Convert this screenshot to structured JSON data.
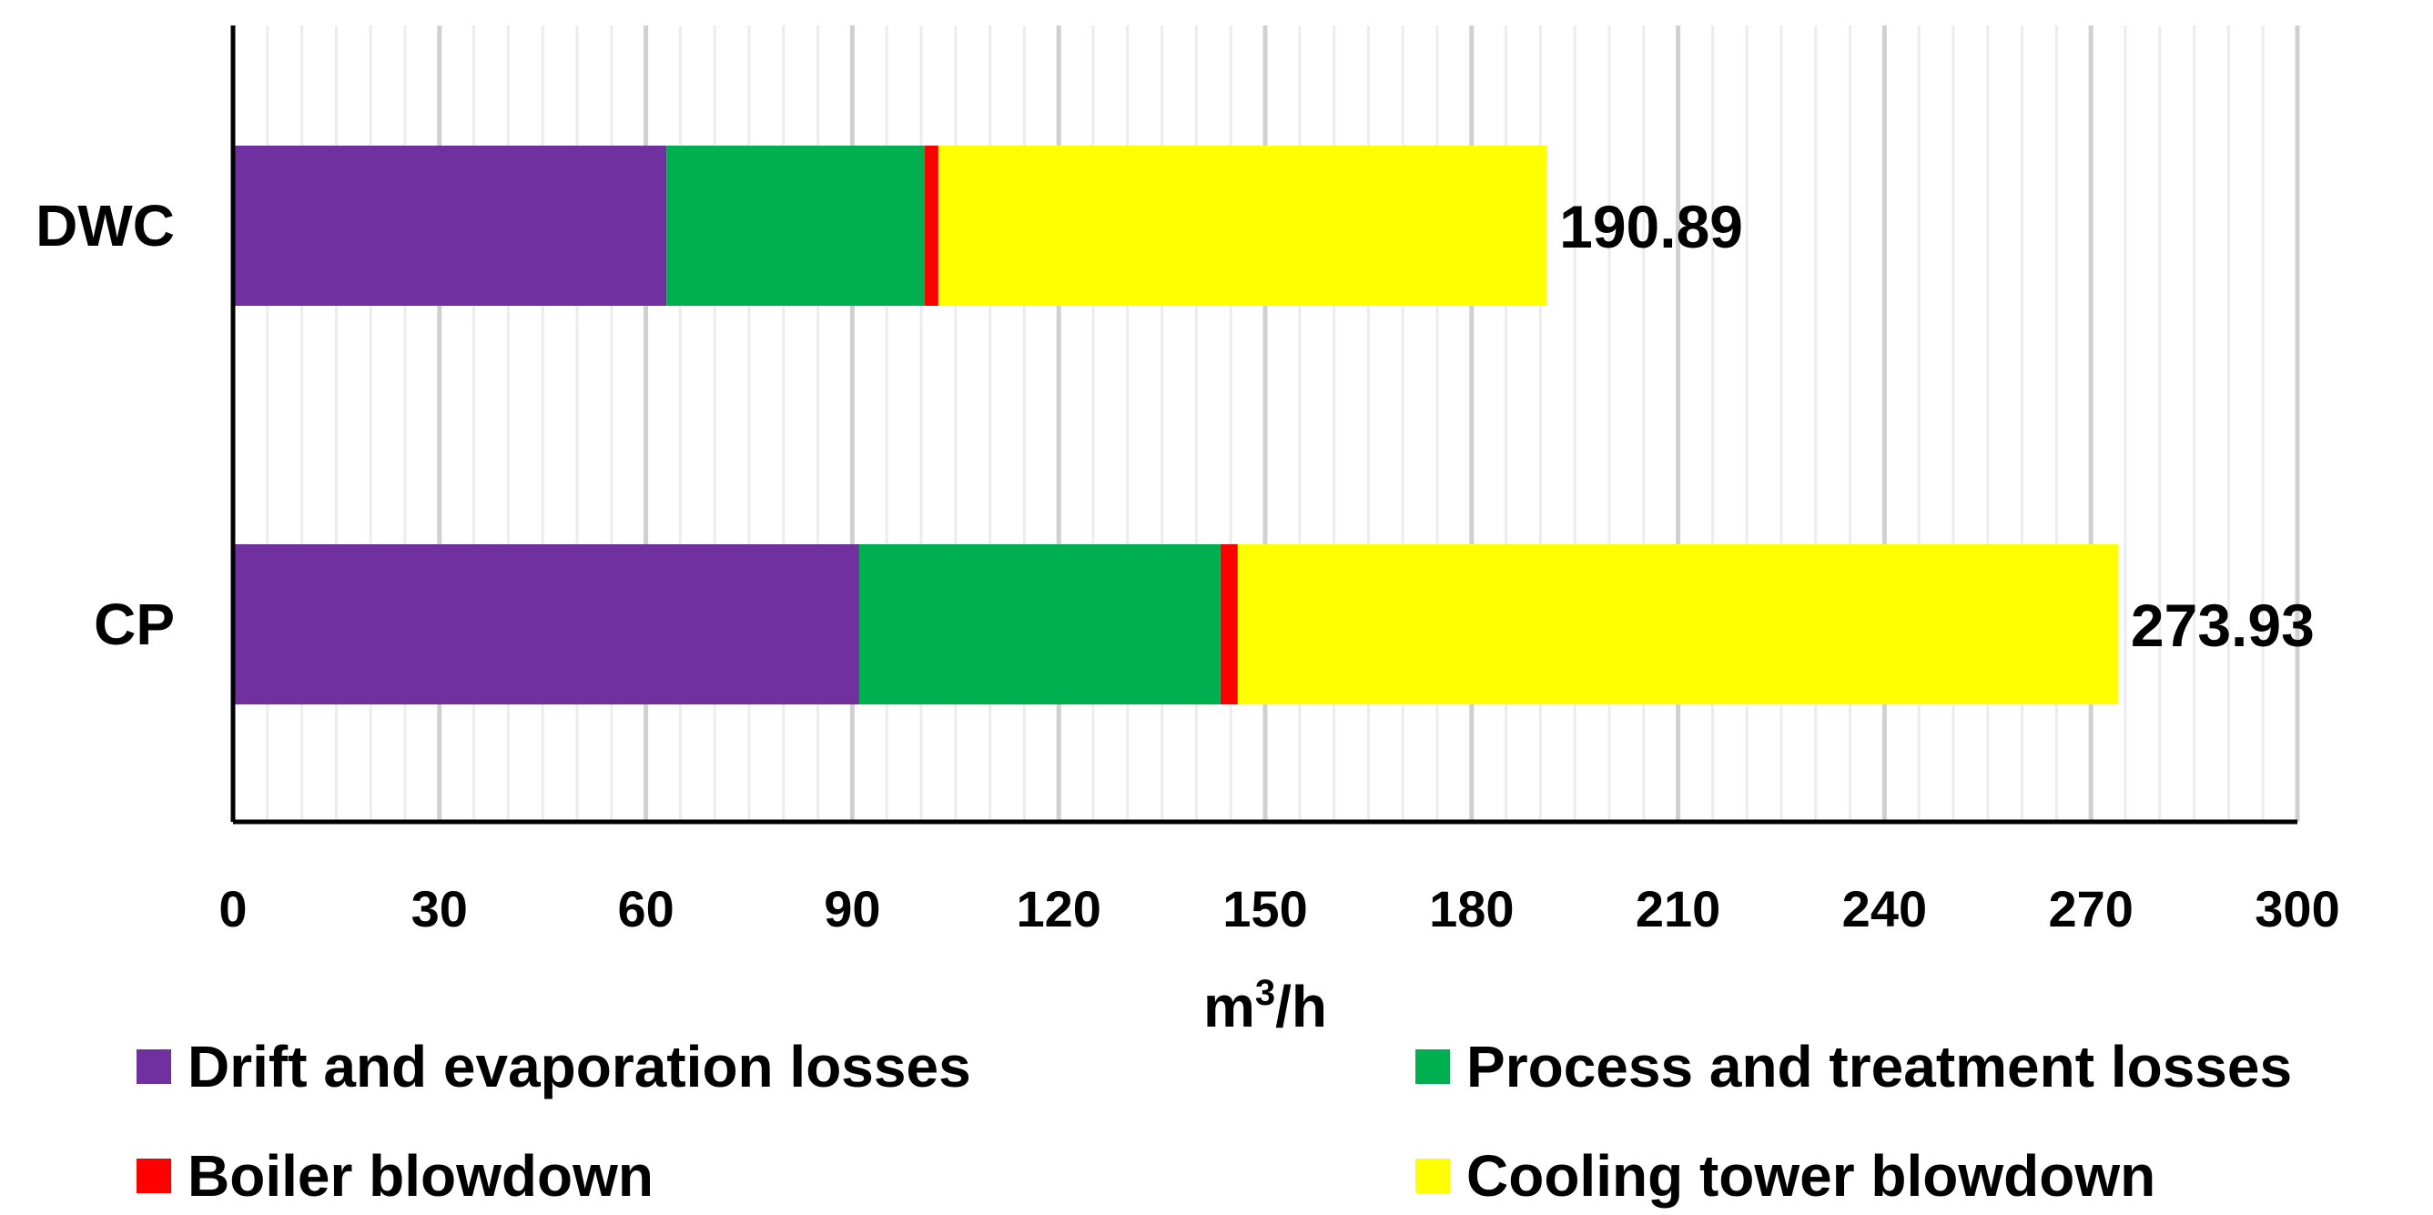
{
  "chart_data": {
    "type": "bar",
    "orientation": "horizontal",
    "stacked": true,
    "categories": [
      "DWC",
      "CP"
    ],
    "series": [
      {
        "name": "Drift and evaporation losses",
        "color": "#7030a0",
        "values": [
          63.0,
          91.0
        ]
      },
      {
        "name": "Process and treatment losses",
        "color": "#00b050",
        "values": [
          37.5,
          52.5
        ]
      },
      {
        "name": "Boiler blowdown",
        "color": "#ff0000",
        "values": [
          2.0,
          2.5
        ]
      },
      {
        "name": "Cooling tower blowdown",
        "color": "#ffff00",
        "values": [
          88.39,
          127.93
        ]
      }
    ],
    "totals": [
      "190.89",
      "273.93"
    ],
    "xlabel_base": "m",
    "xlabel_sup": "3",
    "xlabel_rest": "/h",
    "xlim": [
      0,
      300
    ],
    "x_major_ticks": [
      "0",
      "30",
      "60",
      "90",
      "120",
      "150",
      "180",
      "210",
      "240",
      "270",
      "300"
    ],
    "grid": true,
    "legend_position": "bottom"
  }
}
